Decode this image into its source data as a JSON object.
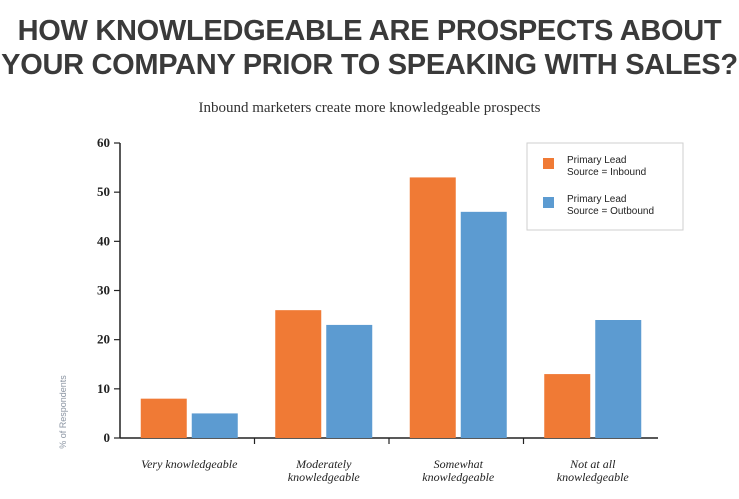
{
  "header": {
    "title_line1": "HOW KNOWLEDGEABLE ARE PROSPECTS ABOUT",
    "title_line2": "YOUR COMPANY PRIOR TO SPEAKING WITH SALES?",
    "subtitle": "Inbound marketers create more knowledgeable prospects"
  },
  "chart_data": {
    "type": "bar",
    "title": "HOW KNOWLEDGEABLE ARE PROSPECTS ABOUT YOUR COMPANY PRIOR TO SPEAKING WITH SALES?",
    "subtitle": "Inbound marketers create more knowledgeable prospects",
    "xlabel": "",
    "ylabel": "% of Respondents",
    "ylim": [
      0,
      60
    ],
    "yticks": [
      0,
      10,
      20,
      30,
      40,
      50,
      60
    ],
    "grid": false,
    "legend_position": "top-right",
    "categories": [
      [
        "Very knowledgeable"
      ],
      [
        "Moderately",
        "knowledgeable"
      ],
      [
        "Somewhat",
        "knowledgeable"
      ],
      [
        "Not at all",
        "knowledgeable"
      ]
    ],
    "series": [
      {
        "name_lines": [
          "Primary Lead",
          "Source = Inbound"
        ],
        "color": "#f07a35",
        "values": [
          8,
          26,
          53,
          13
        ]
      },
      {
        "name_lines": [
          "Primary Lead",
          "Source = Outbound"
        ],
        "color": "#5c9bd1",
        "values": [
          5,
          23,
          46,
          24
        ]
      }
    ]
  }
}
